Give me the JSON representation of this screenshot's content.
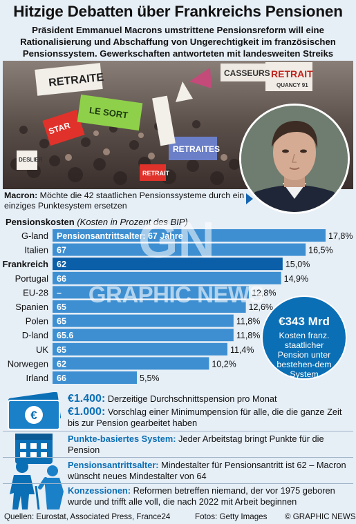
{
  "header": {
    "title": "Hitzige Debatten über Frankreichs Pensionen",
    "subtitle": "Präsident Emmanuel Macrons umstrittene Pensionsreform will eine Rationalisierung und Abschaffung von Ungerechtigkeit im französischen Pensionssystem. Gewerkschaften antworteten mit landesweiten Streiks"
  },
  "photo": {
    "banners": [
      "RETRAITE",
      "RETRAIT",
      "CASSEURS",
      "RETRAIT",
      "QUANCY 91",
      "STAR",
      "LE SORT",
      "DESLIER",
      "RETRAITES"
    ]
  },
  "macron": {
    "label": "Macron:",
    "text": "Möchte die 42 staatlichen Pensionssysteme durch ein einziges Punktesystem ersetzen"
  },
  "chart_head": {
    "title": "Pensionskosten",
    "note": "(Kosten in Prozent des BIP)"
  },
  "chart_data": {
    "type": "bar",
    "orientation": "horizontal",
    "title": "Pensionskosten",
    "subtitle": "(Kosten in Prozent des BIP)",
    "categories": [
      "G-land",
      "Italien",
      "Frankreich",
      "Portugal",
      "EU-28",
      "Spanien",
      "Polen",
      "D-land",
      "UK",
      "Norwegen",
      "Irland"
    ],
    "values": [
      17.8,
      16.5,
      15.0,
      14.9,
      12.8,
      12.6,
      11.8,
      11.8,
      11.4,
      10.2,
      5.5
    ],
    "value_labels": [
      "17,8%",
      "16,5%",
      "15,0%",
      "14,9%",
      "12,8%",
      "12,6%",
      "11,8%",
      "11,8%",
      "11,4%",
      "10,2%",
      "5,5%"
    ],
    "inner_labels": [
      "Pensionsantrittsalter: 67 Jahre",
      "67",
      "62",
      "66",
      "–",
      "65",
      "65",
      "65.6",
      "65",
      "62",
      "66"
    ],
    "highlight": "Frankreich",
    "colors": {
      "bar": "#3d8fd1",
      "highlight": "#0b5ea8",
      "label": "#ffffff"
    }
  },
  "badge": {
    "amount": "€343 Mrd",
    "text": "Kosten franz. staatlicher Pension unter bestehen-dem System"
  },
  "watermark": {
    "logo": "GN",
    "text": "GRAPHIC NEWS"
  },
  "info": {
    "avg_amount": "€1.400:",
    "avg_text": "Derzeitige Durchschnittspension pro Monat",
    "min_amount": "€1.000:",
    "min_text": "Vorschlag einer Minimumpension für alle, die die ganze Zeit bis zur Pension gearbeitet haben",
    "points_label": "Punkte-basiertes System:",
    "points_text": "Jeder Arbeitstag bringt Punkte für die Pension",
    "age_label": "Pensionsantrittsalter:",
    "age_text": "Mindestalter für Pensionsantritt ist 62  – Macron wünscht neues Mindestalter von 64",
    "conc_label": "Konzessionen:",
    "conc_text": "Reformen betreffen niemand, der vor 1975 geboren wurde und trifft alle voll, die nach 2022 mit Arbeit beginnen"
  },
  "footer": {
    "sources": "Quellen: Eurostat, Associated Press, France24",
    "photos": "Fotos: Getty Images",
    "copyright": "© GRAPHIC NEWS"
  },
  "colors": {
    "accent": "#0b6fb5",
    "background": "#e6eef6"
  }
}
